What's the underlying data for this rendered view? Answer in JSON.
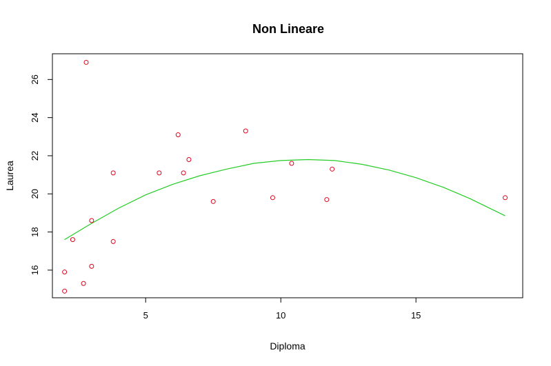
{
  "chart_data": {
    "type": "scatter",
    "title": "Non Lineare",
    "xlabel": "Diploma",
    "ylabel": "Laurea",
    "xlim": [
      1.55,
      18.95
    ],
    "ylim": [
      14.55,
      27.35
    ],
    "x_ticks": [
      5,
      10,
      15
    ],
    "y_ticks": [
      16,
      18,
      20,
      22,
      24,
      26
    ],
    "grid": false,
    "legend": "none",
    "points_color": "#e0001a",
    "curve_color": "#22cc22",
    "points": [
      {
        "x": 2.0,
        "y": 15.9
      },
      {
        "x": 2.0,
        "y": 14.9
      },
      {
        "x": 2.3,
        "y": 17.6
      },
      {
        "x": 2.7,
        "y": 15.3
      },
      {
        "x": 2.8,
        "y": 26.9
      },
      {
        "x": 3.0,
        "y": 16.2
      },
      {
        "x": 3.0,
        "y": 18.6
      },
      {
        "x": 3.8,
        "y": 17.5
      },
      {
        "x": 3.8,
        "y": 21.1
      },
      {
        "x": 5.5,
        "y": 21.1
      },
      {
        "x": 6.2,
        "y": 23.1
      },
      {
        "x": 6.4,
        "y": 21.1
      },
      {
        "x": 6.6,
        "y": 21.8
      },
      {
        "x": 7.5,
        "y": 19.6
      },
      {
        "x": 8.7,
        "y": 23.3
      },
      {
        "x": 9.7,
        "y": 19.8
      },
      {
        "x": 10.4,
        "y": 21.6
      },
      {
        "x": 11.7,
        "y": 19.7
      },
      {
        "x": 11.9,
        "y": 21.3
      },
      {
        "x": 18.3,
        "y": 19.8
      }
    ],
    "curve": {
      "x": [
        2.0,
        3.0,
        4.0,
        5.0,
        6.0,
        7.0,
        8.0,
        9.0,
        10.0,
        11.0,
        12.0,
        13.0,
        14.0,
        15.0,
        16.0,
        17.0,
        18.3
      ],
      "y": [
        17.6,
        18.45,
        19.25,
        19.95,
        20.5,
        20.95,
        21.3,
        21.6,
        21.75,
        21.8,
        21.75,
        21.55,
        21.25,
        20.85,
        20.35,
        19.75,
        18.85
      ]
    }
  }
}
